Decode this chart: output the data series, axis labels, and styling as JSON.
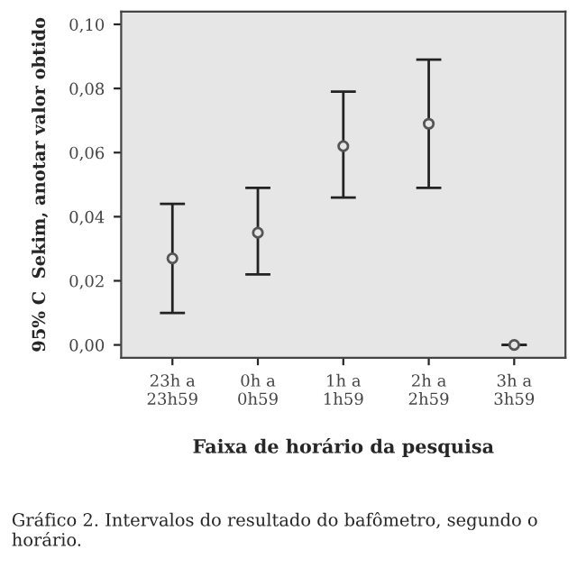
{
  "chart_data": {
    "type": "scatter",
    "ylabel": "95% C  Sekim, anotar valor obtido",
    "xlabel": "Faixa de horário da pesquisa",
    "categories": [
      "23h a\n23h59",
      "0h a\n0h59",
      "1h a\n1h59",
      "2h a\n2h59",
      "3h a\n3h59"
    ],
    "series": [
      {
        "color": "#555555",
        "values": [
          0.027,
          0.035,
          0.062,
          0.069,
          0.0
        ],
        "errors": [
          [
            0.01,
            0.044
          ],
          [
            0.022,
            0.049
          ],
          [
            0.046,
            0.079
          ],
          [
            0.049,
            0.089
          ],
          [
            0.0,
            0.0
          ]
        ]
      }
    ],
    "ylim": [
      -0.004,
      0.104
    ],
    "yticks": [
      {
        "value": 0.0,
        "label": "0,00"
      },
      {
        "value": 0.02,
        "label": "0,02"
      },
      {
        "value": 0.04,
        "label": "0,04"
      },
      {
        "value": 0.06,
        "label": "0,06"
      },
      {
        "value": 0.08,
        "label": "0,08"
      },
      {
        "value": 0.1,
        "label": "0,10"
      }
    ],
    "marker": "circle",
    "grid": false,
    "legend": false,
    "annotations": [
      "Gráfico 2. Intervalos do resultado do bafômetro, segundo o horário."
    ]
  }
}
